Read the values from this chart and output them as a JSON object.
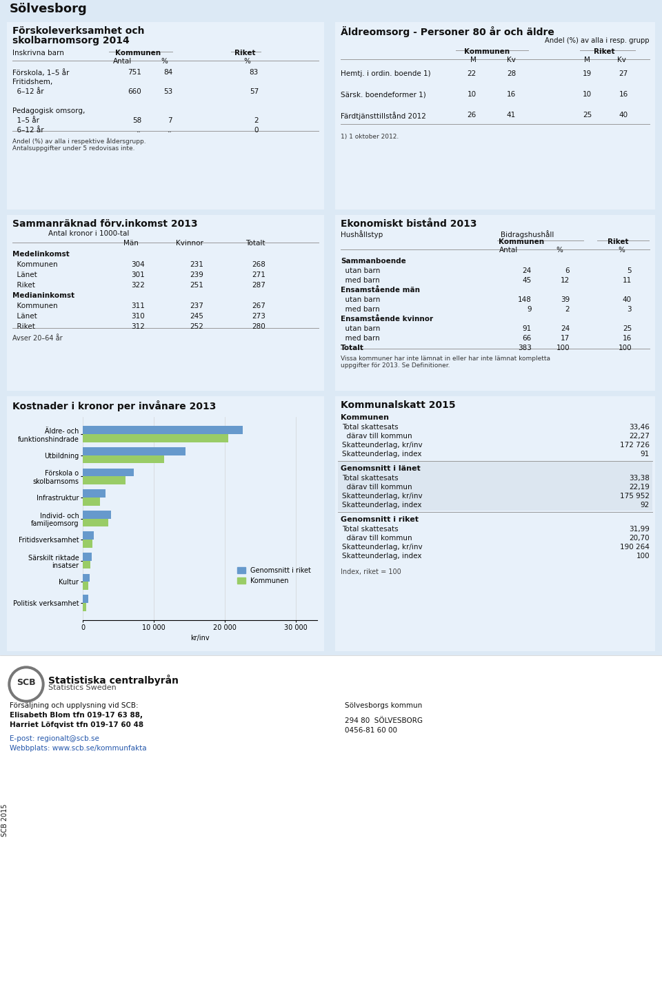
{
  "title": "Sölvesborg",
  "bg_color": "#dce9f5",
  "panel_bg": "#e8f1fa",
  "white": "#ffffff",
  "gray_light": "#dce6f0",
  "section1_footnote1": "Andel (%) av alla i respektive åldersgrupp.",
  "section1_footnote2": "Antalsuppgifter under 5 redovisas inte.",
  "section2_footnote": "1) 1 oktober 2012.",
  "section3_footnote": "Avser 20–64 år",
  "section4_footnote": "Vissa kommuner har inte lämnat in eller har inte lämnat kompletta\nuppgifter för 2013. Se Definitioner.",
  "section5_categories": [
    "Äldre- och\nfunktionshindrade",
    "Utbildning",
    "Förskola o\nskolbarnsoms",
    "Infrastruktur",
    "Individ- och\nfamiljeomsorg",
    "Fritidsverksamhet",
    "Särskilt riktade\ninsatser",
    "Kultur",
    "Politisk verksamhet"
  ],
  "section5_riket": [
    22500,
    14500,
    7200,
    3200,
    4000,
    1600,
    1300,
    950,
    800
  ],
  "section5_kommunen": [
    20500,
    11500,
    6000,
    2400,
    3600,
    1350,
    1050,
    750,
    500
  ],
  "section5_color_riket": "#6699cc",
  "section5_color_kommunen": "#99cc66",
  "section6_blocks": [
    {
      "header": "Kommunen",
      "rows": [
        [
          "Total skattesats",
          "33,46"
        ],
        [
          "  därav till kommun",
          "22,27"
        ],
        [
          "Skatteunderlag, kr/inv",
          "172 726"
        ],
        [
          "Skatteunderlag, index",
          "91"
        ]
      ]
    },
    {
      "header": "Genomsnitt i länet",
      "rows": [
        [
          "Total skattesats",
          "33,38"
        ],
        [
          "  därav till kommun",
          "22,19"
        ],
        [
          "Skatteunderlag, kr/inv",
          "175 952"
        ],
        [
          "Skatteunderlag, index",
          "92"
        ]
      ]
    },
    {
      "header": "Genomsnitt i riket",
      "rows": [
        [
          "Total skattesats",
          "31,99"
        ],
        [
          "  därav till kommun",
          "20,70"
        ],
        [
          "Skatteunderlag, kr/inv",
          "190 264"
        ],
        [
          "Skatteunderlag, index",
          "100"
        ]
      ]
    }
  ],
  "section6_footnote": "Index, riket = 100",
  "footer_line1": "Försäljning och upplysning vid SCB:",
  "footer_line2": "Elisabeth Blom tfn 019-17 63 88,",
  "footer_line3": "Harriet Löfqvist tfn 019-17 60 48",
  "footer_email": "E-post: regionalt@scb.se",
  "footer_web": "Webbplats: www.scb.se/kommunfakta",
  "footer_right1": "Sölvesborgs kommun",
  "footer_right2": "294 80  SÖLVESBORG",
  "footer_right3": "0456-81 60 00",
  "footer_scb_year": "SCB 2015"
}
